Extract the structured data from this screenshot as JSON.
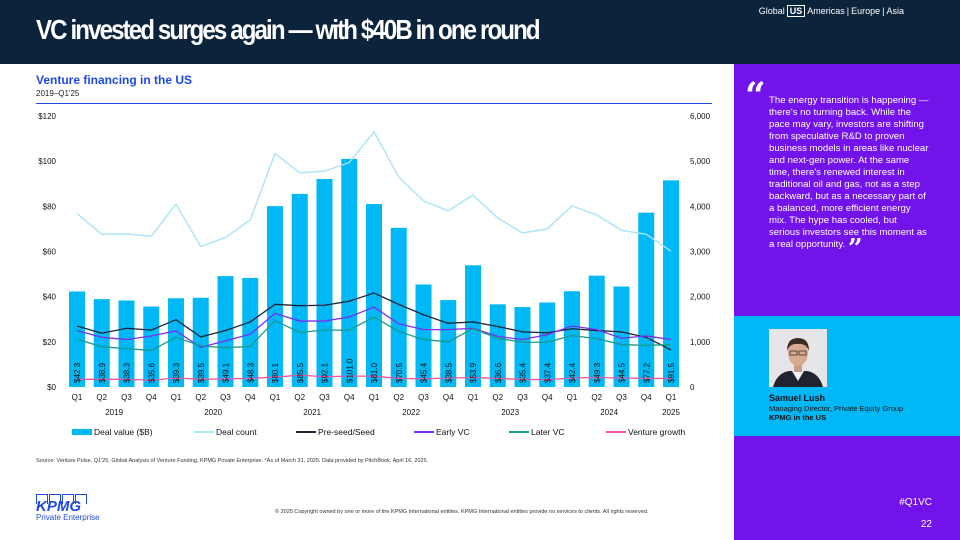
{
  "header": {
    "title": "VC invested surges again — with $40B in one round",
    "regions": [
      "Global",
      "US",
      "Americas",
      "|",
      "Europe",
      "|",
      "Asia"
    ]
  },
  "chart_data": {
    "type": "bar",
    "title": "Venture financing in the US",
    "subtitle": "2019–Q1'25",
    "categories": [
      "Q1",
      "Q2",
      "Q3",
      "Q4",
      "Q1",
      "Q2",
      "Q3",
      "Q4",
      "Q1",
      "Q2",
      "Q3",
      "Q4",
      "Q1",
      "Q2",
      "Q3",
      "Q4",
      "Q1",
      "Q2",
      "Q3",
      "Q4",
      "Q1",
      "Q2",
      "Q3",
      "Q4",
      "Q1"
    ],
    "years": [
      {
        "label": "2019",
        "start": 0,
        "count": 4
      },
      {
        "label": "2020",
        "start": 4,
        "count": 4
      },
      {
        "label": "2021",
        "start": 8,
        "count": 4
      },
      {
        "label": "2022",
        "start": 12,
        "count": 4
      },
      {
        "label": "2023",
        "start": 16,
        "count": 4
      },
      {
        "label": "2024",
        "start": 20,
        "count": 4
      },
      {
        "label": "2025",
        "start": 24,
        "count": 1
      }
    ],
    "left_axis": {
      "ylim": [
        0,
        120
      ],
      "ticks": [
        "$0",
        "$20",
        "$40",
        "$60",
        "$80",
        "$100",
        "$120"
      ]
    },
    "right_axis": {
      "ylim": [
        0,
        6000
      ],
      "ticks": [
        "0",
        "1,000",
        "2,000",
        "3,000",
        "4,000",
        "5,000",
        "6,000"
      ]
    },
    "bars": {
      "name": "Deal value ($B)",
      "axis": "left",
      "color": "#00b8f5",
      "values": [
        42.3,
        38.9,
        38.3,
        35.6,
        39.3,
        39.5,
        49.1,
        48.3,
        80.1,
        85.5,
        92.1,
        101.0,
        81.0,
        70.5,
        45.4,
        38.5,
        53.9,
        36.6,
        35.4,
        37.4,
        42.4,
        49.3,
        44.5,
        77.2,
        91.5
      ],
      "labels": [
        "$42.3",
        "$38.9",
        "$38.3",
        "$35.6",
        "$39.3",
        "$39.5",
        "$49.1",
        "$48.3",
        "$80.1",
        "$85.5",
        "$92.1",
        "$101.0",
        "$81.0",
        "$70.5",
        "$45.4",
        "$38.5",
        "$53.9",
        "$36.6",
        "$35.4",
        "$37.4",
        "$42.4",
        "$49.3",
        "$44.5",
        "$77.2",
        "$91.5"
      ]
    },
    "series": [
      {
        "name": "Deal count",
        "axis": "right",
        "color": "#a9e4f7",
        "values": [
          3840,
          3380,
          3390,
          3340,
          4050,
          3110,
          3310,
          3700,
          5170,
          4740,
          4780,
          4970,
          5650,
          4650,
          4120,
          3900,
          4250,
          3740,
          3410,
          3500,
          4010,
          3810,
          3470,
          3380,
          3010
        ]
      },
      {
        "name": "Pre-seed/Seed",
        "axis": "right",
        "color": "#1c2536",
        "values": [
          1350,
          1190,
          1300,
          1260,
          1490,
          1110,
          1250,
          1440,
          1830,
          1800,
          1810,
          1900,
          2080,
          1830,
          1600,
          1410,
          1440,
          1340,
          1220,
          1200,
          1290,
          1250,
          1220,
          1100,
          820
        ]
      },
      {
        "name": "Early VC",
        "axis": "right",
        "color": "#7b2ff0",
        "values": [
          1250,
          1100,
          1050,
          1130,
          1240,
          880,
          1020,
          1170,
          1630,
          1460,
          1460,
          1550,
          1770,
          1400,
          1270,
          1270,
          1300,
          1120,
          1050,
          1160,
          1350,
          1270,
          1080,
          1130,
          1050
        ]
      },
      {
        "name": "Later VC",
        "axis": "right",
        "color": "#1a9a86",
        "values": [
          1060,
          890,
          850,
          810,
          1100,
          910,
          870,
          900,
          1470,
          1210,
          1260,
          1260,
          1550,
          1230,
          1050,
          1000,
          1290,
          1080,
          990,
          990,
          1140,
          1070,
          940,
          920,
          940
        ]
      },
      {
        "name": "Venture growth",
        "axis": "right",
        "color": "#f0569e",
        "values": [
          170,
          170,
          170,
          150,
          200,
          170,
          180,
          190,
          220,
          260,
          230,
          240,
          240,
          190,
          180,
          200,
          210,
          190,
          170,
          160,
          200,
          210,
          200,
          190,
          190
        ]
      }
    ],
    "legend_position": "bottom"
  },
  "footer": {
    "source": "Source: Venture Pulse, Q1'25, Global Analysis of Venture Funding, KPMG Private Enterprise. *As of March 31, 2025. Data provided by PitchBook, April 16, 2025.",
    "copyright": "© 2025 Copyright owned by one or more of the KPMG International entities. KPMG International entities provide no services to clients. All rights reserved.",
    "logo": "KPMG",
    "logo_sub": "Private Enterprise",
    "hashtag": "#Q1VC",
    "page": "22"
  },
  "quote": {
    "open_mark": "“",
    "text": "The energy transition is happening — there's no turning back. While the pace may vary, investors are shifting from speculative R&D to proven business models in areas like nuclear and next-gen power. At the same time, there's renewed interest in traditional oil and gas, not as a step backward, but as a necessary part of a balanced, more efficient energy mix. The hype has cooled, but serious investors see this moment as a real opportunity.",
    "close_mark": "”"
  },
  "person": {
    "name": "Samuel Lush",
    "role": "Managing Director, Private Equity Group",
    "org": "KPMG in the US"
  },
  "colors": {
    "header": "#0c233c",
    "purple": "#7213ea",
    "cyan": "#00b8f5",
    "accent": "#1e49e2"
  }
}
